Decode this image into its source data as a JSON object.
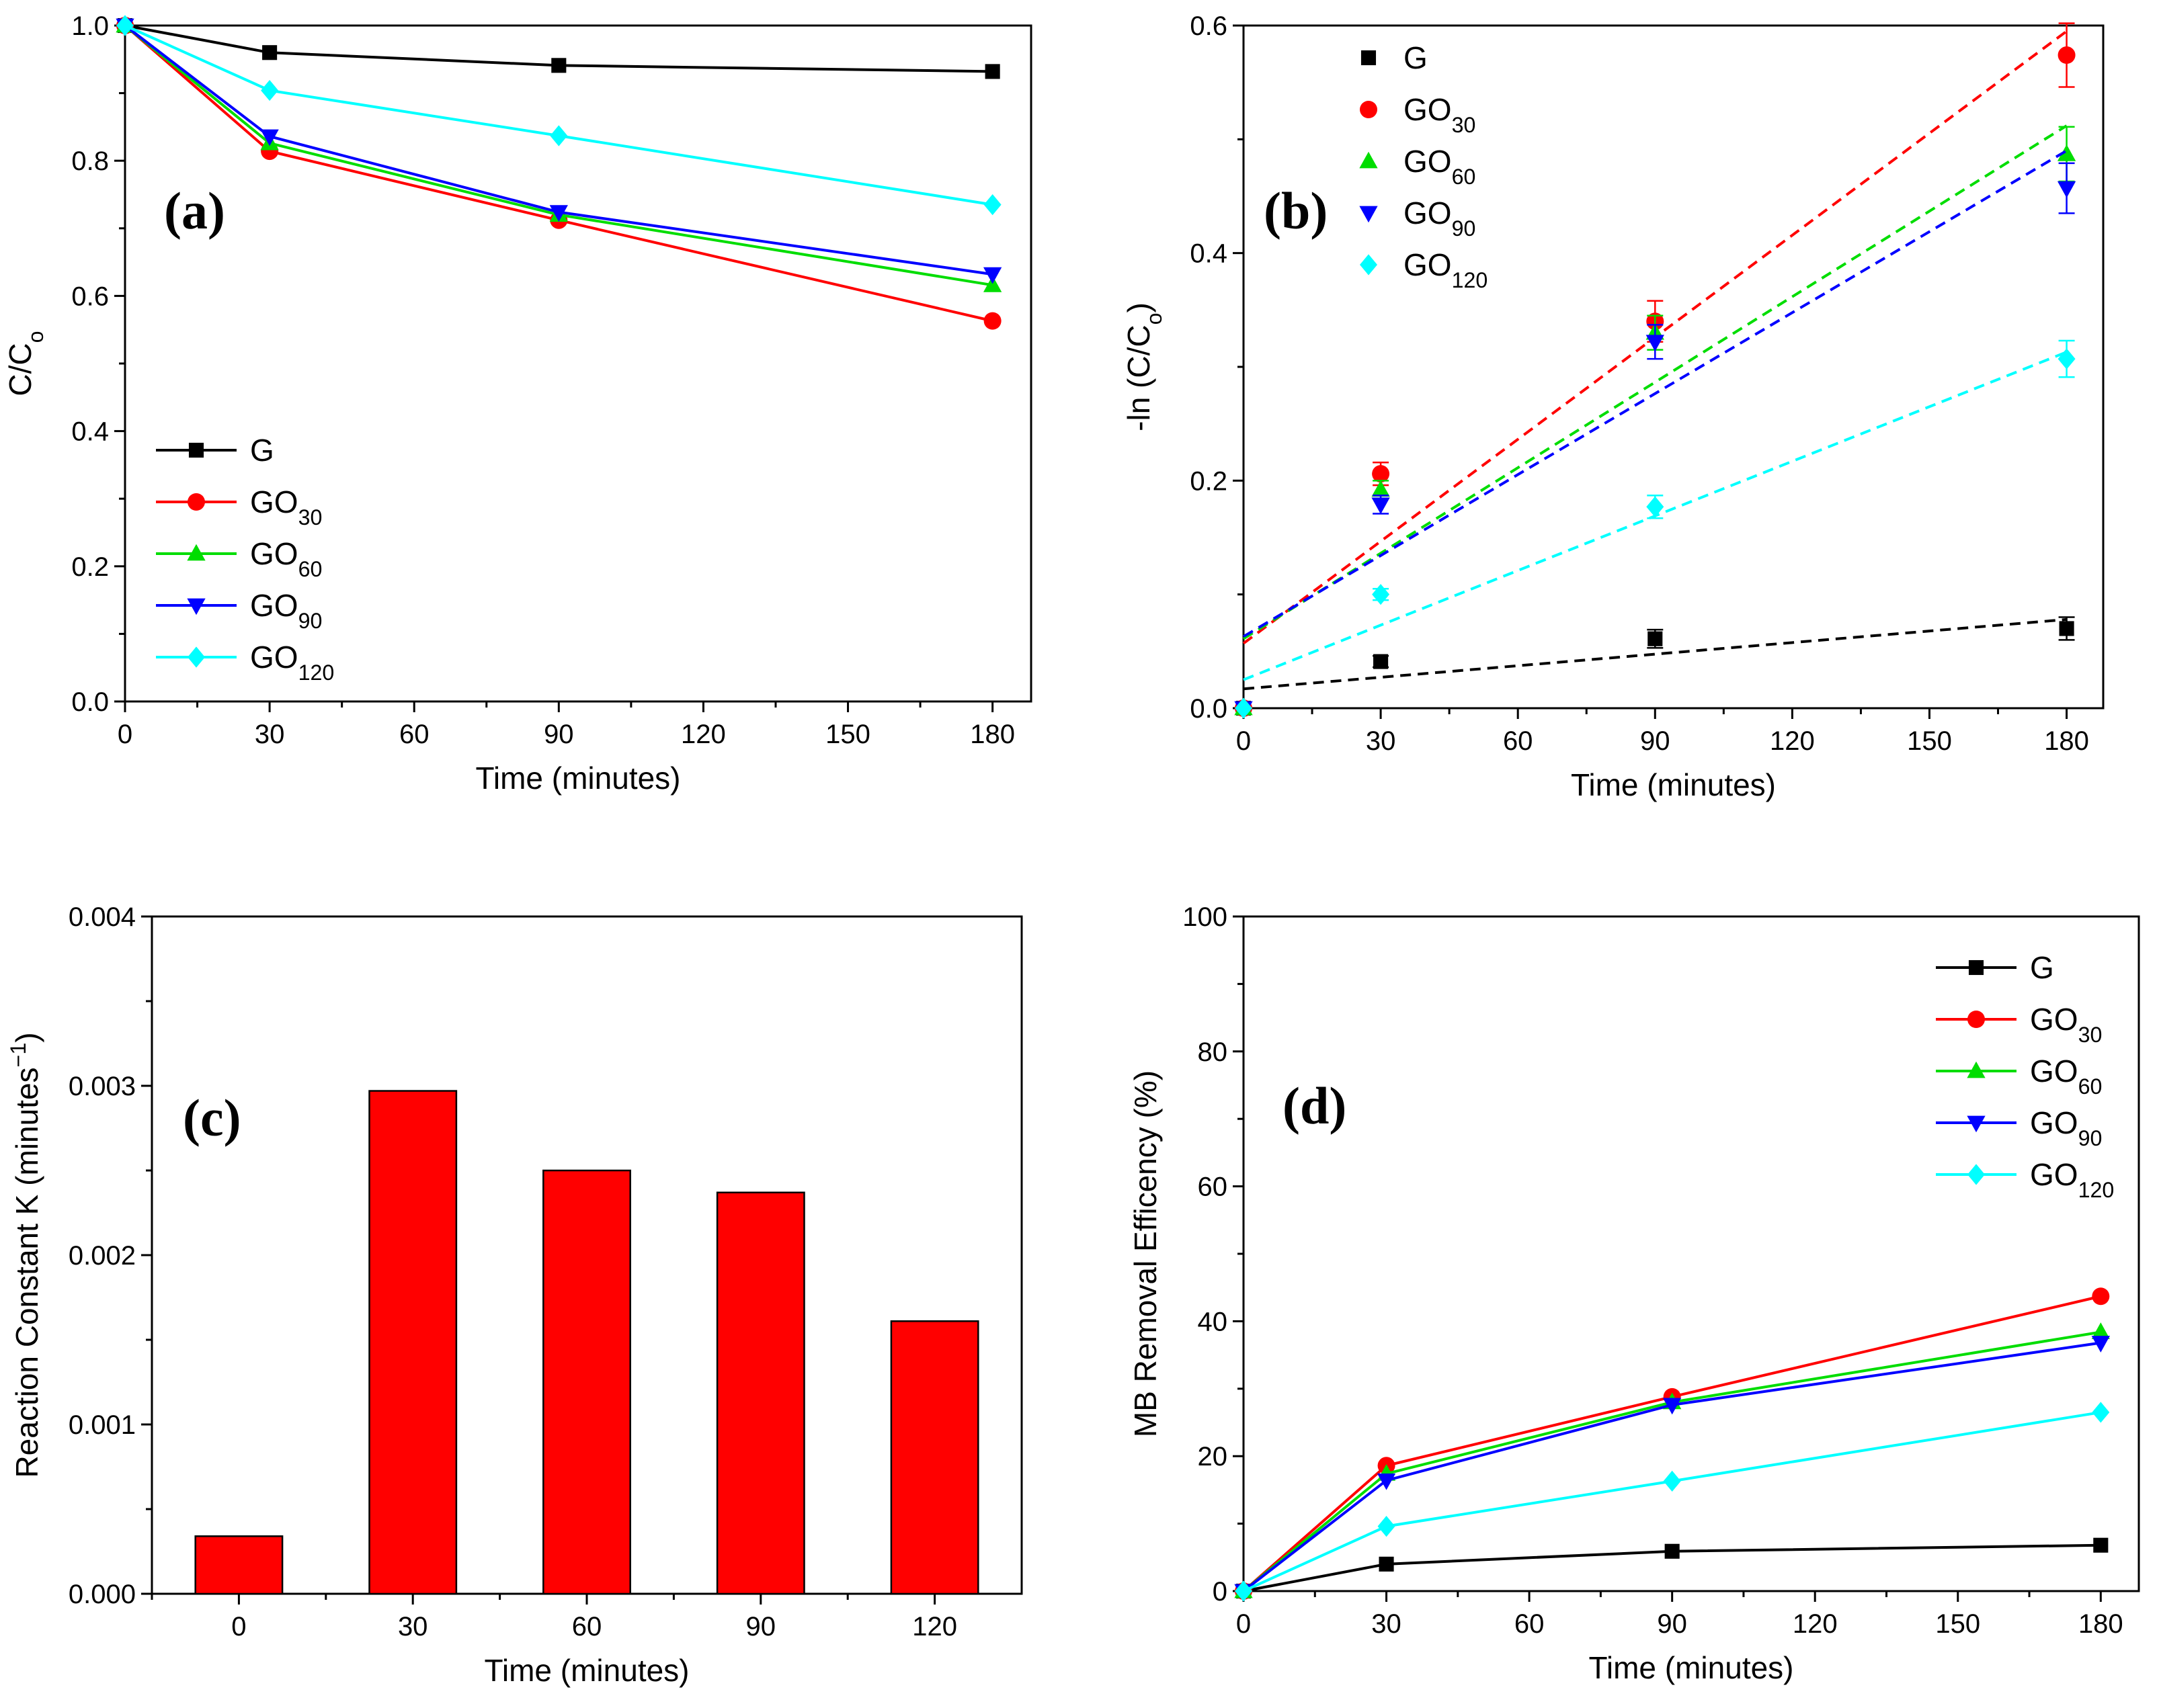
{
  "chart_data": [
    {
      "id": "a",
      "type": "line",
      "panel_label": "(a)",
      "xlabel": "Time (minutes)",
      "ylabel": {
        "main": "C/C",
        "sub": "o"
      },
      "x": [
        0,
        30,
        90,
        180
      ],
      "xlim": [
        0,
        188
      ],
      "ylim": [
        0,
        1.0
      ],
      "xticks": [
        0,
        30,
        60,
        90,
        120,
        150,
        180
      ],
      "yticks": [
        0.0,
        0.2,
        0.4,
        0.6,
        0.8,
        1.0
      ],
      "ytick_decimals": 1,
      "legend_position": "bottom-left",
      "series": [
        {
          "name": "G",
          "name_main": "G",
          "name_sub": "",
          "marker": "square",
          "color": "#000000",
          "values": [
            1.0,
            0.96,
            0.941,
            0.932
          ]
        },
        {
          "name": "GO30",
          "name_main": "GO",
          "name_sub": "30",
          "marker": "circle",
          "color": "#ff0000",
          "values": [
            1.0,
            0.814,
            0.712,
            0.563
          ]
        },
        {
          "name": "GO60",
          "name_main": "GO",
          "name_sub": "60",
          "marker": "triangle-up",
          "color": "#00dd00",
          "values": [
            1.0,
            0.826,
            0.72,
            0.616
          ]
        },
        {
          "name": "GO90",
          "name_main": "GO",
          "name_sub": "90",
          "marker": "triangle-down",
          "color": "#0000ff",
          "values": [
            1.0,
            0.836,
            0.724,
            0.632
          ]
        },
        {
          "name": "GO120",
          "name_main": "GO",
          "name_sub": "120",
          "marker": "diamond",
          "color": "#00ffff",
          "values": [
            1.0,
            0.904,
            0.837,
            0.735
          ]
        }
      ]
    },
    {
      "id": "b",
      "type": "scatter",
      "panel_label": "(b)",
      "xlabel": "Time (minutes)",
      "ylabel": {
        "main": "-ln (C/C",
        "sub": "o",
        "tail": ")"
      },
      "x": [
        0,
        30,
        90,
        180
      ],
      "xlim": [
        0,
        188
      ],
      "ylim": [
        0,
        0.6
      ],
      "xticks": [
        0,
        30,
        60,
        90,
        120,
        150,
        180
      ],
      "yticks": [
        0.0,
        0.2,
        0.4,
        0.6
      ],
      "ytick_decimals": 1,
      "legend_position": "top-left",
      "series": [
        {
          "name": "G",
          "name_main": "G",
          "name_sub": "",
          "marker": "square",
          "color": "#000000",
          "values": [
            0.0,
            0.041,
            0.061,
            0.07
          ],
          "errors": [
            0,
            0.005,
            0.008,
            0.01
          ],
          "fit": [
            0.017,
            0.078
          ]
        },
        {
          "name": "GO30",
          "name_main": "GO",
          "name_sub": "30",
          "marker": "circle",
          "color": "#ff0000",
          "values": [
            0.0,
            0.206,
            0.34,
            0.574
          ],
          "errors": [
            0,
            0.01,
            0.018,
            0.028
          ],
          "fit": [
            0.057,
            0.595
          ]
        },
        {
          "name": "GO60",
          "name_main": "GO",
          "name_sub": "60",
          "marker": "triangle-up",
          "color": "#00dd00",
          "values": [
            0.0,
            0.192,
            0.33,
            0.487
          ],
          "errors": [
            0,
            0.008,
            0.015,
            0.024
          ],
          "fit": [
            0.061,
            0.512
          ]
        },
        {
          "name": "GO90",
          "name_main": "GO",
          "name_sub": "90",
          "marker": "triangle-down",
          "color": "#0000ff",
          "values": [
            0.0,
            0.179,
            0.322,
            0.457
          ],
          "errors": [
            0,
            0.008,
            0.015,
            0.022
          ],
          "fit": [
            0.063,
            0.49
          ]
        },
        {
          "name": "GO120",
          "name_main": "GO",
          "name_sub": "120",
          "marker": "diamond",
          "color": "#00ffff",
          "values": [
            0.0,
            0.1,
            0.177,
            0.307
          ],
          "errors": [
            0,
            0.005,
            0.01,
            0.016
          ],
          "fit": [
            0.025,
            0.313
          ]
        }
      ]
    },
    {
      "id": "c",
      "type": "bar",
      "panel_label": "(c)",
      "xlabel": "Time (minutes)",
      "ylabel": {
        "main": "Reaction Constant K (minutes",
        "sup": "−1",
        "tail": ")"
      },
      "categories": [
        "0",
        "30",
        "60",
        "90",
        "120"
      ],
      "values": [
        0.00034,
        0.00297,
        0.0025,
        0.00237,
        0.00161
      ],
      "ylim": [
        0,
        0.004
      ],
      "yticks": [
        0.0,
        0.001,
        0.002,
        0.003,
        0.004
      ],
      "ytick_decimals": 3,
      "bar_color": "#ff0000"
    },
    {
      "id": "d",
      "type": "line",
      "panel_label": "(d)",
      "xlabel": "Time (minutes)",
      "ylabel": {
        "main": "MB Removal Efficency (%)"
      },
      "x": [
        0,
        30,
        90,
        180
      ],
      "xlim": [
        0,
        188
      ],
      "ylim": [
        0,
        100
      ],
      "xticks": [
        0,
        30,
        60,
        90,
        120,
        150,
        180
      ],
      "yticks": [
        0,
        20,
        40,
        60,
        80,
        100
      ],
      "ytick_decimals": 0,
      "legend_position": "top-right",
      "series": [
        {
          "name": "G",
          "name_main": "G",
          "name_sub": "",
          "marker": "square",
          "color": "#000000",
          "values": [
            0,
            4.0,
            5.9,
            6.8
          ]
        },
        {
          "name": "GO30",
          "name_main": "GO",
          "name_sub": "30",
          "marker": "circle",
          "color": "#ff0000",
          "values": [
            0,
            18.6,
            28.8,
            43.7
          ]
        },
        {
          "name": "GO60",
          "name_main": "GO",
          "name_sub": "60",
          "marker": "triangle-up",
          "color": "#00dd00",
          "values": [
            0,
            17.4,
            28.0,
            38.4
          ]
        },
        {
          "name": "GO90",
          "name_main": "GO",
          "name_sub": "90",
          "marker": "triangle-down",
          "color": "#0000ff",
          "values": [
            0,
            16.4,
            27.6,
            36.8
          ]
        },
        {
          "name": "GO120",
          "name_main": "GO",
          "name_sub": "120",
          "marker": "diamond",
          "color": "#00ffff",
          "values": [
            0,
            9.6,
            16.3,
            26.5
          ]
        }
      ]
    }
  ]
}
